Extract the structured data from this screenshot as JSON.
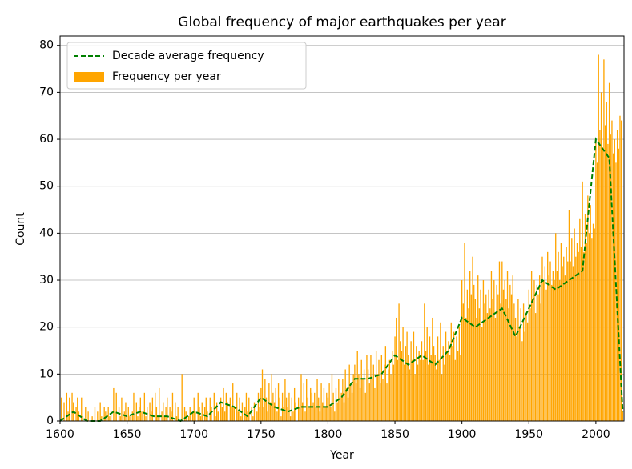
{
  "chart_data": {
    "type": "bar",
    "title": "Global frequency of major earthquakes per year",
    "x_label": "Year",
    "y_label": "Count",
    "xlim": [
      1600,
      2021
    ],
    "ylim": [
      0,
      82
    ],
    "xticks": [
      1600,
      1650,
      1700,
      1750,
      1800,
      1850,
      1900,
      1950,
      2000
    ],
    "yticks": [
      0,
      10,
      20,
      30,
      40,
      50,
      60,
      70,
      80
    ],
    "grid": "y",
    "legend": "upper left",
    "series": [
      {
        "name": "Decade average frequency",
        "type": "line",
        "color": "#008000",
        "dashed": true,
        "x": [
          1600,
          1610,
          1620,
          1630,
          1640,
          1650,
          1660,
          1670,
          1680,
          1690,
          1700,
          1710,
          1720,
          1730,
          1740,
          1750,
          1760,
          1770,
          1780,
          1790,
          1800,
          1810,
          1820,
          1830,
          1840,
          1850,
          1860,
          1870,
          1880,
          1890,
          1900,
          1910,
          1920,
          1930,
          1940,
          1950,
          1960,
          1970,
          1980,
          1990,
          2000,
          2010,
          2020
        ],
        "values": [
          0,
          2,
          0,
          0,
          2,
          1,
          2,
          1,
          1,
          0,
          2,
          1,
          4,
          3,
          1,
          5,
          3,
          2,
          3,
          3,
          3,
          5,
          9,
          9,
          10,
          14,
          12,
          14,
          12,
          15,
          22,
          20,
          22,
          24,
          18,
          24,
          30,
          28,
          30,
          32,
          60,
          56,
          2
        ]
      },
      {
        "name": "Frequency per year",
        "type": "bar",
        "color": "#ffa500",
        "x": [
          1600,
          1601,
          1602,
          1603,
          1604,
          1605,
          1606,
          1607,
          1608,
          1609,
          1610,
          1611,
          1612,
          1613,
          1614,
          1615,
          1616,
          1617,
          1618,
          1619,
          1620,
          1621,
          1622,
          1623,
          1624,
          1625,
          1626,
          1627,
          1628,
          1629,
          1630,
          1631,
          1632,
          1633,
          1634,
          1635,
          1636,
          1637,
          1638,
          1639,
          1640,
          1641,
          1642,
          1643,
          1644,
          1645,
          1646,
          1647,
          1648,
          1649,
          1650,
          1651,
          1652,
          1653,
          1654,
          1655,
          1656,
          1657,
          1658,
          1659,
          1660,
          1661,
          1662,
          1663,
          1664,
          1665,
          1666,
          1667,
          1668,
          1669,
          1670,
          1671,
          1672,
          1673,
          1674,
          1675,
          1676,
          1677,
          1678,
          1679,
          1680,
          1681,
          1682,
          1683,
          1684,
          1685,
          1686,
          1687,
          1688,
          1689,
          1690,
          1691,
          1692,
          1693,
          1694,
          1695,
          1696,
          1697,
          1698,
          1699,
          1700,
          1701,
          1702,
          1703,
          1704,
          1705,
          1706,
          1707,
          1708,
          1709,
          1710,
          1711,
          1712,
          1713,
          1714,
          1715,
          1716,
          1717,
          1718,
          1719,
          1720,
          1721,
          1722,
          1723,
          1724,
          1725,
          1726,
          1727,
          1728,
          1729,
          1730,
          1731,
          1732,
          1733,
          1734,
          1735,
          1736,
          1737,
          1738,
          1739,
          1740,
          1741,
          1742,
          1743,
          1744,
          1745,
          1746,
          1747,
          1748,
          1749,
          1750,
          1751,
          1752,
          1753,
          1754,
          1755,
          1756,
          1757,
          1758,
          1759,
          1760,
          1761,
          1762,
          1763,
          1764,
          1765,
          1766,
          1767,
          1768,
          1769,
          1770,
          1771,
          1772,
          1773,
          1774,
          1775,
          1776,
          1777,
          1778,
          1779,
          1780,
          1781,
          1782,
          1783,
          1784,
          1785,
          1786,
          1787,
          1788,
          1789,
          1790,
          1791,
          1792,
          1793,
          1794,
          1795,
          1796,
          1797,
          1798,
          1799,
          1800,
          1801,
          1802,
          1803,
          1804,
          1805,
          1806,
          1807,
          1808,
          1809,
          1810,
          1811,
          1812,
          1813,
          1814,
          1815,
          1816,
          1817,
          1818,
          1819,
          1820,
          1821,
          1822,
          1823,
          1824,
          1825,
          1826,
          1827,
          1828,
          1829,
          1830,
          1831,
          1832,
          1833,
          1834,
          1835,
          1836,
          1837,
          1838,
          1839,
          1840,
          1841,
          1842,
          1843,
          1844,
          1845,
          1846,
          1847,
          1848,
          1849,
          1850,
          1851,
          1852,
          1853,
          1854,
          1855,
          1856,
          1857,
          1858,
          1859,
          1860,
          1861,
          1862,
          1863,
          1864,
          1865,
          1866,
          1867,
          1868,
          1869,
          1870,
          1871,
          1872,
          1873,
          1874,
          1875,
          1876,
          1877,
          1878,
          1879,
          1880,
          1881,
          1882,
          1883,
          1884,
          1885,
          1886,
          1887,
          1888,
          1889,
          1890,
          1891,
          1892,
          1893,
          1894,
          1895,
          1896,
          1897,
          1898,
          1899,
          1900,
          1901,
          1902,
          1903,
          1904,
          1905,
          1906,
          1907,
          1908,
          1909,
          1910,
          1911,
          1912,
          1913,
          1914,
          1915,
          1916,
          1917,
          1918,
          1919,
          1920,
          1921,
          1922,
          1923,
          1924,
          1925,
          1926,
          1927,
          1928,
          1929,
          1930,
          1931,
          1932,
          1933,
          1934,
          1935,
          1936,
          1937,
          1938,
          1939,
          1940,
          1941,
          1942,
          1943,
          1944,
          1945,
          1946,
          1947,
          1948,
          1949,
          1950,
          1951,
          1952,
          1953,
          1954,
          1955,
          1956,
          1957,
          1958,
          1959,
          1960,
          1961,
          1962,
          1963,
          1964,
          1965,
          1966,
          1967,
          1968,
          1969,
          1970,
          1971,
          1972,
          1973,
          1974,
          1975,
          1976,
          1977,
          1978,
          1979,
          1980,
          1981,
          1982,
          1983,
          1984,
          1985,
          1986,
          1987,
          1988,
          1989,
          1990,
          1991,
          1992,
          1993,
          1994,
          1995,
          1996,
          1997,
          1998,
          1999,
          2000,
          2001,
          2002,
          2003,
          2004,
          2005,
          2006,
          2007,
          2008,
          2009,
          2010,
          2011,
          2012,
          2013,
          2014,
          2015,
          2016,
          2017,
          2018,
          2019,
          2020
        ],
        "values": [
          0,
          5,
          0,
          4,
          0,
          6,
          2,
          5,
          0,
          6,
          4,
          0,
          3,
          5,
          2,
          0,
          5,
          1,
          0,
          3,
          0,
          2,
          0,
          0,
          1,
          0,
          3,
          0,
          2,
          0,
          4,
          1,
          0,
          3,
          2,
          0,
          3,
          1,
          2,
          0,
          7,
          2,
          6,
          0,
          3,
          1,
          5,
          0,
          2,
          4,
          0,
          3,
          1,
          0,
          2,
          6,
          0,
          4,
          1,
          3,
          5,
          2,
          0,
          6,
          1,
          3,
          0,
          4,
          2,
          5,
          0,
          6,
          3,
          1,
          7,
          0,
          2,
          4,
          1,
          3,
          5,
          0,
          3,
          2,
          6,
          0,
          4,
          1,
          3,
          0,
          0,
          10,
          0,
          3,
          2,
          0,
          1,
          3,
          0,
          2,
          5,
          2,
          0,
          6,
          3,
          1,
          4,
          0,
          3,
          5,
          2,
          0,
          5,
          3,
          0,
          6,
          1,
          4,
          2,
          0,
          5,
          3,
          7,
          2,
          6,
          4,
          0,
          5,
          3,
          8,
          3,
          0,
          6,
          2,
          5,
          1,
          4,
          0,
          3,
          6,
          2,
          5,
          0,
          3,
          1,
          4,
          0,
          2,
          6,
          3,
          7,
          11,
          3,
          9,
          5,
          2,
          8,
          4,
          10,
          6,
          4,
          7,
          2,
          8,
          5,
          1,
          6,
          3,
          9,
          5,
          3,
          6,
          1,
          5,
          2,
          7,
          4,
          0,
          5,
          3,
          10,
          4,
          8,
          2,
          9,
          5,
          3,
          7,
          6,
          4,
          6,
          3,
          9,
          5,
          2,
          8,
          4,
          7,
          3,
          6,
          5,
          8,
          3,
          10,
          6,
          2,
          7,
          4,
          9,
          5,
          6,
          9,
          4,
          11,
          7,
          5,
          12,
          8,
          6,
          10,
          12,
          8,
          15,
          10,
          7,
          13,
          9,
          11,
          6,
          14,
          11,
          8,
          14,
          9,
          12,
          7,
          15,
          10,
          13,
          8,
          14,
          9,
          12,
          16,
          8,
          11,
          13,
          10,
          15,
          12,
          18,
          22,
          13,
          25,
          17,
          15,
          20,
          12,
          16,
          19,
          14,
          11,
          17,
          13,
          19,
          10,
          16,
          12,
          15,
          13,
          17,
          13,
          25,
          15,
          20,
          12,
          18,
          14,
          22,
          16,
          14,
          11,
          18,
          13,
          21,
          10,
          16,
          12,
          19,
          15,
          17,
          14,
          21,
          16,
          19,
          13,
          18,
          15,
          20,
          14,
          30,
          25,
          38,
          22,
          28,
          24,
          32,
          27,
          35,
          29,
          26,
          22,
          31,
          24,
          28,
          20,
          30,
          25,
          27,
          23,
          28,
          24,
          32,
          26,
          30,
          22,
          29,
          27,
          34,
          25,
          34,
          28,
          30,
          26,
          32,
          24,
          29,
          27,
          31,
          25,
          22,
          18,
          26,
          20,
          24,
          17,
          25,
          19,
          23,
          21,
          28,
          24,
          32,
          26,
          30,
          23,
          29,
          27,
          31,
          25,
          35,
          30,
          33,
          28,
          36,
          31,
          34,
          29,
          32,
          30,
          40,
          32,
          36,
          30,
          38,
          33,
          35,
          31,
          37,
          34,
          45,
          34,
          39,
          33,
          41,
          35,
          38,
          36,
          43,
          37,
          51,
          36,
          44,
          38,
          48,
          40,
          46,
          39,
          42,
          41,
          60,
          55,
          78,
          62,
          70,
          58,
          77,
          63,
          68,
          59,
          72,
          61,
          64,
          57,
          60,
          55,
          62,
          58,
          65,
          64,
          2
        ]
      }
    ]
  }
}
